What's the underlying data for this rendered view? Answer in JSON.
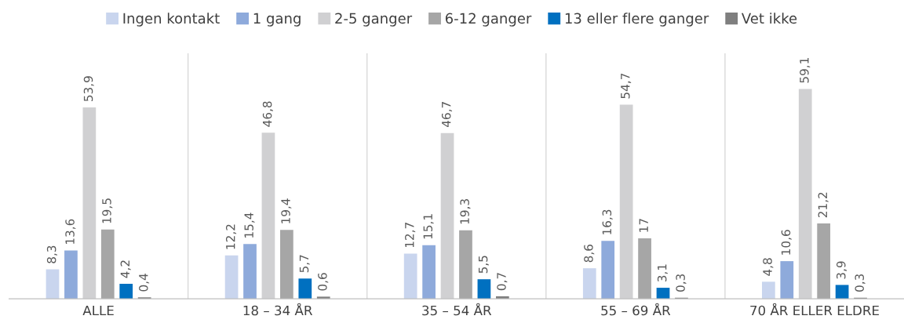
{
  "chart_data": {
    "type": "bar",
    "categories": [
      "ALLE",
      "18 – 34 ÅR",
      "35 – 54 ÅR",
      "55 – 69 ÅR",
      "70 ÅR ELLER ELDRE"
    ],
    "series": [
      {
        "name": "Ingen kontakt",
        "color": "#c9d5ee",
        "values": [
          8.3,
          12.2,
          12.7,
          8.6,
          4.8
        ],
        "value_labels": [
          "8,3",
          "12,2",
          "12,7",
          "8,6",
          "4,8"
        ]
      },
      {
        "name": "1 gang",
        "color": "#8eaadb",
        "values": [
          13.6,
          15.4,
          15.1,
          16.3,
          10.6
        ],
        "value_labels": [
          "13,6",
          "15,4",
          "15,1",
          "16,3",
          "10,6"
        ]
      },
      {
        "name": "2-5 ganger",
        "color": "#d0d0d2",
        "values": [
          53.9,
          46.8,
          46.7,
          54.7,
          59.1
        ],
        "value_labels": [
          "53,9",
          "46,8",
          "46,7",
          "54,7",
          "59,1"
        ]
      },
      {
        "name": "6-12 ganger",
        "color": "#a6a6a6",
        "values": [
          19.5,
          19.4,
          19.3,
          17,
          21.2
        ],
        "value_labels": [
          "19,5",
          "19,4",
          "19,3",
          "17",
          "21,2"
        ]
      },
      {
        "name": "13 eller flere ganger",
        "color": "#0070c0",
        "values": [
          4.2,
          5.7,
          5.5,
          3.1,
          3.9
        ],
        "value_labels": [
          "4,2",
          "5,7",
          "5,5",
          "3,1",
          "3,9"
        ]
      },
      {
        "name": "Vet ikke",
        "color": "#7f7f7f",
        "values": [
          0.4,
          0.6,
          0.7,
          0.3,
          0.3
        ],
        "value_labels": [
          "0,4",
          "0,6",
          "0,7",
          "0,3",
          "0,3"
        ]
      }
    ],
    "legend": "top",
    "grid": "x"
  }
}
